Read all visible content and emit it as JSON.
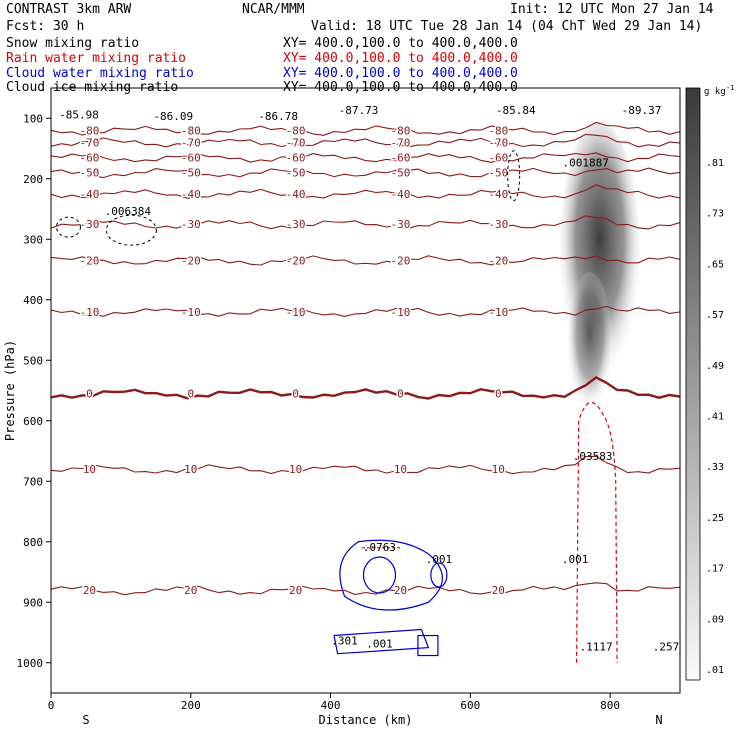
{
  "header": {
    "product": "CONTRAST  3km ARW",
    "center": "NCAR/MMM",
    "init": "Init: 12 UTC Mon 27 Jan 14",
    "fcst": "Fcst:   30 h",
    "valid": "Valid: 18 UTC Tue 28 Jan 14 (04 ChT Wed 29 Jan 14)"
  },
  "fields": [
    {
      "name": "Snow mixing ratio",
      "xy": "XY= 400.0,100.0 to 400.0,400.0",
      "color": "#000000"
    },
    {
      "name": "Rain water mixing ratio",
      "xy": "XY= 400.0,100.0 to 400.0,400.0",
      "color": "#dd0000"
    },
    {
      "name": "Cloud water mixing ratio",
      "xy": "XY= 400.0,100.0 to 400.0,400.0",
      "color": "#0000cc"
    },
    {
      "name": "Cloud ice mixing ratio",
      "xy": "XY= 400.0,100.0 to 400.0,400.0",
      "color": "#000000"
    }
  ],
  "chart_data": {
    "type": "contour",
    "xlabel": "Distance (km)",
    "ylabel": "Pressure (hPa)",
    "xlim": [
      0,
      900
    ],
    "ylim": [
      1050,
      50
    ],
    "x_ticks": [
      "0",
      "200",
      "400",
      "600",
      "800"
    ],
    "x_tick_values": [
      0,
      200,
      400,
      600,
      800
    ],
    "y_ticks": [
      "100",
      "200",
      "300",
      "400",
      "500",
      "600",
      "700",
      "800",
      "900",
      "1000"
    ],
    "y_tick_values": [
      100,
      200,
      300,
      400,
      500,
      600,
      700,
      800,
      900,
      1000
    ],
    "south_label": "S",
    "north_label": "N",
    "colorbar": {
      "unit": "g kg",
      "unit_exp": "-1",
      "labels": [
        ".81",
        ".73",
        ".65",
        ".57",
        ".49",
        ".41",
        ".33",
        ".25",
        ".17",
        ".09",
        ".01"
      ],
      "values": [
        0.81,
        0.73,
        0.65,
        0.57,
        0.49,
        0.41,
        0.33,
        0.25,
        0.17,
        0.09,
        0.01
      ]
    },
    "temperature_contours": [
      {
        "label": "-80",
        "p": 120
      },
      {
        "label": "-70",
        "p": 140
      },
      {
        "label": "-60",
        "p": 165
      },
      {
        "label": "-50",
        "p": 190
      },
      {
        "label": "-40",
        "p": 225
      },
      {
        "label": "-30",
        "p": 275
      },
      {
        "label": "-20",
        "p": 335
      },
      {
        "label": "-10",
        "p": 420
      },
      {
        "label": "0",
        "p": 555
      },
      {
        "label": "10",
        "p": 680
      },
      {
        "label": "20",
        "p": 880
      }
    ],
    "annotations": [
      {
        "text": "-85.98",
        "x": 40,
        "p": 100
      },
      {
        "text": "-86.09",
        "x": 175,
        "p": 103
      },
      {
        "text": "-86.78",
        "x": 325,
        "p": 103
      },
      {
        "text": "-87.73",
        "x": 440,
        "p": 93
      },
      {
        "text": "-85.84",
        "x": 665,
        "p": 93
      },
      {
        "text": "-89.37",
        "x": 845,
        "p": 93
      },
      {
        "text": ".001887",
        "x": 765,
        "p": 180
      },
      {
        "text": ".006384",
        "x": 110,
        "p": 260
      },
      {
        "text": ".03583",
        "x": 775,
        "p": 665
      },
      {
        "text": ".001",
        "x": 750,
        "p": 835
      },
      {
        "text": ".001",
        "x": 555,
        "p": 835
      },
      {
        "text": ".1117",
        "x": 780,
        "p": 980
      },
      {
        "text": ".257",
        "x": 880,
        "p": 980
      },
      {
        "text": ".301",
        "x": 420,
        "p": 970
      },
      {
        "text": ".001",
        "x": 470,
        "p": 975
      },
      {
        "text": ".0763",
        "x": 470,
        "p": 815
      }
    ]
  }
}
